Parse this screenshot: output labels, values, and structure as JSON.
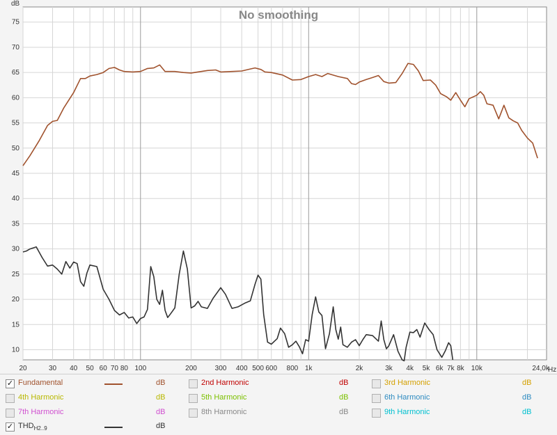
{
  "chart_data": {
    "type": "line",
    "title": "No smoothing",
    "ylabel": "dB",
    "xunit": "Hz",
    "xscale": "log",
    "xlim": [
      20,
      26000
    ],
    "ylim": [
      8,
      78
    ],
    "grid": true,
    "ytick_labels": [
      "10",
      "15",
      "20",
      "25",
      "30",
      "35",
      "40",
      "45",
      "50",
      "55",
      "60",
      "65",
      "70",
      "75"
    ],
    "xtick_labels": [
      {
        "v": 20,
        "t": "20"
      },
      {
        "v": 30,
        "t": "30"
      },
      {
        "v": 40,
        "t": "40"
      },
      {
        "v": 50,
        "t": "50"
      },
      {
        "v": 60,
        "t": "60"
      },
      {
        "v": 70,
        "t": "70"
      },
      {
        "v": 80,
        "t": "80"
      },
      {
        "v": 100,
        "t": "100"
      },
      {
        "v": 200,
        "t": "200"
      },
      {
        "v": 300,
        "t": "300"
      },
      {
        "v": 400,
        "t": "400"
      },
      {
        "v": 500,
        "t": "500"
      },
      {
        "v": 600,
        "t": "600"
      },
      {
        "v": 800,
        "t": "800"
      },
      {
        "v": 1000,
        "t": "1k"
      },
      {
        "v": 2000,
        "t": "2k"
      },
      {
        "v": 3000,
        "t": "3k"
      },
      {
        "v": 4000,
        "t": "4k"
      },
      {
        "v": 5000,
        "t": "5k"
      },
      {
        "v": 6000,
        "t": "6k"
      },
      {
        "v": 7000,
        "t": "7k"
      },
      {
        "v": 8000,
        "t": "8k"
      },
      {
        "v": 10000,
        "t": "10k"
      },
      {
        "v": 24000,
        "t": "24,0k"
      }
    ],
    "series": [
      {
        "name": "Fundamental",
        "color": "#a0522d",
        "points": [
          [
            20,
            46.5
          ],
          [
            22,
            48.5
          ],
          [
            25,
            51.5
          ],
          [
            28,
            54.5
          ],
          [
            30,
            55.3
          ],
          [
            32,
            55.5
          ],
          [
            35,
            58
          ],
          [
            40,
            61
          ],
          [
            44,
            63.8
          ],
          [
            47,
            63.8
          ],
          [
            50,
            64.3
          ],
          [
            55,
            64.6
          ],
          [
            60,
            65
          ],
          [
            65,
            65.8
          ],
          [
            70,
            66
          ],
          [
            75,
            65.5
          ],
          [
            80,
            65.2
          ],
          [
            90,
            65.1
          ],
          [
            100,
            65.2
          ],
          [
            110,
            65.8
          ],
          [
            120,
            65.9
          ],
          [
            130,
            66.5
          ],
          [
            140,
            65.2
          ],
          [
            160,
            65.2
          ],
          [
            180,
            65
          ],
          [
            200,
            64.9
          ],
          [
            250,
            65.4
          ],
          [
            280,
            65.5
          ],
          [
            300,
            65.1
          ],
          [
            350,
            65.2
          ],
          [
            400,
            65.3
          ],
          [
            450,
            65.7
          ],
          [
            480,
            65.9
          ],
          [
            520,
            65.6
          ],
          [
            550,
            65.1
          ],
          [
            600,
            65
          ],
          [
            700,
            64.5
          ],
          [
            800,
            63.5
          ],
          [
            900,
            63.6
          ],
          [
            1000,
            64.2
          ],
          [
            1100,
            64.6
          ],
          [
            1200,
            64.2
          ],
          [
            1300,
            64.8
          ],
          [
            1500,
            64.2
          ],
          [
            1700,
            63.8
          ],
          [
            1800,
            62.8
          ],
          [
            1900,
            62.6
          ],
          [
            2000,
            63.1
          ],
          [
            2200,
            63.6
          ],
          [
            2400,
            64
          ],
          [
            2600,
            64.4
          ],
          [
            2800,
            63.2
          ],
          [
            3000,
            62.9
          ],
          [
            3300,
            63
          ],
          [
            3600,
            64.8
          ],
          [
            3900,
            66.8
          ],
          [
            4200,
            66.6
          ],
          [
            4500,
            65.3
          ],
          [
            4800,
            63.4
          ],
          [
            5300,
            63.5
          ],
          [
            5700,
            62.5
          ],
          [
            6100,
            60.8
          ],
          [
            6600,
            60.2
          ],
          [
            7000,
            59.5
          ],
          [
            7500,
            61
          ],
          [
            8000,
            59.5
          ],
          [
            8500,
            58.2
          ],
          [
            9000,
            59.8
          ],
          [
            10000,
            60.5
          ],
          [
            10500,
            61.2
          ],
          [
            11000,
            60.5
          ],
          [
            11500,
            58.8
          ],
          [
            12500,
            58.5
          ],
          [
            13500,
            55.8
          ],
          [
            14500,
            58.5
          ],
          [
            15500,
            56
          ],
          [
            16500,
            55.4
          ],
          [
            17500,
            55
          ],
          [
            18500,
            53.5
          ],
          [
            20000,
            52
          ],
          [
            21500,
            51
          ],
          [
            23000,
            48
          ]
        ]
      },
      {
        "name": "THD H2..9",
        "color": "#333333",
        "points": [
          [
            20,
            29.4
          ],
          [
            21,
            29.6
          ],
          [
            22,
            30
          ],
          [
            24,
            30.4
          ],
          [
            26,
            28.3
          ],
          [
            28,
            26.6
          ],
          [
            30,
            26.8
          ],
          [
            32,
            26
          ],
          [
            34,
            25
          ],
          [
            36,
            27.5
          ],
          [
            38,
            26.2
          ],
          [
            40,
            27.4
          ],
          [
            42,
            27.1
          ],
          [
            44,
            23.5
          ],
          [
            46,
            22.6
          ],
          [
            48,
            25.2
          ],
          [
            50,
            26.8
          ],
          [
            55,
            26.5
          ],
          [
            60,
            22
          ],
          [
            65,
            20
          ],
          [
            70,
            17.8
          ],
          [
            75,
            16.9
          ],
          [
            80,
            17.4
          ],
          [
            85,
            16.3
          ],
          [
            90,
            16.5
          ],
          [
            95,
            15.2
          ],
          [
            100,
            16.2
          ],
          [
            105,
            16.5
          ],
          [
            110,
            18
          ],
          [
            115,
            26.5
          ],
          [
            120,
            24.5
          ],
          [
            125,
            20
          ],
          [
            130,
            19
          ],
          [
            135,
            21.8
          ],
          [
            140,
            17.8
          ],
          [
            145,
            16.4
          ],
          [
            150,
            17
          ],
          [
            160,
            18.3
          ],
          [
            170,
            25
          ],
          [
            180,
            29.6
          ],
          [
            190,
            26
          ],
          [
            200,
            18.3
          ],
          [
            210,
            18.7
          ],
          [
            220,
            19.6
          ],
          [
            230,
            18.5
          ],
          [
            250,
            18.2
          ],
          [
            270,
            20.2
          ],
          [
            300,
            22.3
          ],
          [
            320,
            21
          ],
          [
            350,
            18.2
          ],
          [
            380,
            18.5
          ],
          [
            420,
            19.3
          ],
          [
            450,
            19.7
          ],
          [
            480,
            23
          ],
          [
            500,
            24.8
          ],
          [
            520,
            24
          ],
          [
            540,
            17
          ],
          [
            570,
            11.5
          ],
          [
            600,
            11.1
          ],
          [
            650,
            12.2
          ],
          [
            680,
            14.3
          ],
          [
            720,
            13.2
          ],
          [
            760,
            10.5
          ],
          [
            800,
            11
          ],
          [
            840,
            11.7
          ],
          [
            880,
            10.6
          ],
          [
            920,
            9.2
          ],
          [
            960,
            12
          ],
          [
            1000,
            11.7
          ],
          [
            1050,
            17
          ],
          [
            1100,
            20.5
          ],
          [
            1150,
            17.5
          ],
          [
            1200,
            16.8
          ],
          [
            1260,
            10.2
          ],
          [
            1330,
            13.2
          ],
          [
            1400,
            18.5
          ],
          [
            1450,
            14
          ],
          [
            1500,
            12.1
          ],
          [
            1550,
            14.5
          ],
          [
            1600,
            11
          ],
          [
            1700,
            10.5
          ],
          [
            1800,
            11.5
          ],
          [
            1900,
            12
          ],
          [
            2000,
            10.8
          ],
          [
            2100,
            12
          ],
          [
            2200,
            13
          ],
          [
            2400,
            12.8
          ],
          [
            2600,
            11.7
          ],
          [
            2700,
            15.7
          ],
          [
            2800,
            12
          ],
          [
            2900,
            10.2
          ],
          [
            3000,
            10.8
          ],
          [
            3200,
            13
          ],
          [
            3400,
            9.7
          ],
          [
            3600,
            8
          ],
          [
            3700,
            7.8
          ],
          [
            3800,
            10.5
          ],
          [
            4000,
            13.5
          ],
          [
            4200,
            13.4
          ],
          [
            4400,
            14
          ],
          [
            4600,
            12.5
          ],
          [
            4900,
            15.3
          ],
          [
            5200,
            14
          ],
          [
            5500,
            13
          ],
          [
            5800,
            10
          ],
          [
            6200,
            8.5
          ],
          [
            6500,
            9.8
          ],
          [
            6800,
            11.4
          ],
          [
            7000,
            10.8
          ],
          [
            7200,
            8
          ]
        ]
      }
    ]
  },
  "legend": {
    "row1": {
      "fundamental": {
        "label": "Fundamental",
        "unit": "dB",
        "checked": true,
        "color": "#a0522d"
      },
      "h2": {
        "label": "2nd Harmonic",
        "unit": "dB",
        "color": "#c00000"
      },
      "h3": {
        "label": "3rd Harmonic",
        "unit": "dB",
        "color": "#d4a000"
      }
    },
    "row2": {
      "h4": {
        "label": "4th Harmonic",
        "unit": "dB",
        "color": "#b8b800"
      },
      "h5": {
        "label": "5th Harmonic",
        "unit": "dB",
        "color": "#7cc000"
      },
      "h6": {
        "label": "6th Harmonic",
        "unit": "dB",
        "color": "#2e8bc0"
      }
    },
    "row3": {
      "h7": {
        "label": "7th Harmonic",
        "unit": "dB",
        "color": "#d050d0"
      },
      "h8": {
        "label": "8th Harmonic",
        "unit": "dB",
        "color": "#888888"
      },
      "h9": {
        "label": "9th Harmonic",
        "unit": "dB",
        "color": "#00c0d0"
      }
    },
    "row4": {
      "thd": {
        "label": "THD",
        "sub": "H2..9",
        "unit": "dB",
        "checked": true,
        "color": "#333333"
      }
    }
  }
}
